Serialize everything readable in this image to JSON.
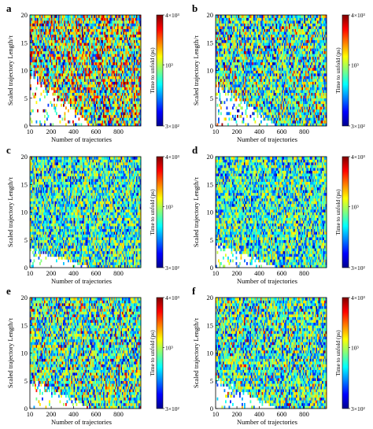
{
  "chart_data": [
    {
      "panel": "a",
      "type": "heatmap",
      "xlabel": "Number of trajectories",
      "ylabel": "Scaled trajectory Length/τ",
      "x_ticks": [
        "10",
        "200",
        "400",
        "600",
        "800"
      ],
      "y_ticks": [
        "0",
        "5",
        "10",
        "15",
        "20"
      ],
      "xlim": [
        10,
        1000
      ],
      "ylim": [
        0,
        20
      ],
      "colorbar": {
        "title": "Time to unfold (ps)",
        "scale": "log",
        "ticks": [
          "3×10²",
          "10³",
          "4×10³"
        ],
        "range": [
          300,
          4000
        ]
      },
      "seed": 11,
      "empty_below_curve": 0.55,
      "high_bias": 0.35
    },
    {
      "panel": "b",
      "type": "heatmap",
      "xlabel": "Number of trajectories",
      "ylabel": "Scaled trajectory Length/τ",
      "x_ticks": [
        "10",
        "200",
        "400",
        "600",
        "800"
      ],
      "y_ticks": [
        "0",
        "5",
        "10",
        "15",
        "20"
      ],
      "xlim": [
        10,
        1000
      ],
      "ylim": [
        0,
        20
      ],
      "colorbar": {
        "title": "Time to unfold (ps)",
        "scale": "log",
        "ticks": [
          "3×10²",
          "10³",
          "4×10³"
        ],
        "range": [
          300,
          4000
        ]
      },
      "seed": 23,
      "empty_below_curve": 0.45,
      "high_bias": 0.1
    },
    {
      "panel": "c",
      "type": "heatmap",
      "xlabel": "Number of trajectories",
      "ylabel": "Scaled trajectory Length/τ",
      "x_ticks": [
        "10",
        "200",
        "400",
        "600",
        "800"
      ],
      "y_ticks": [
        "0",
        "5",
        "10",
        "15",
        "20"
      ],
      "xlim": [
        10,
        1000
      ],
      "ylim": [
        0,
        20
      ],
      "colorbar": {
        "title": "Time to unfold (ps)",
        "scale": "log",
        "ticks": [
          "3×10²",
          "10³",
          "4×10³"
        ],
        "range": [
          300,
          4000
        ]
      },
      "seed": 37,
      "empty_below_curve": 0.2,
      "high_bias": 0.0
    },
    {
      "panel": "d",
      "type": "heatmap",
      "xlabel": "Number of trajectories",
      "ylabel": "Scaled trajectory Length/τ",
      "x_ticks": [
        "10",
        "200",
        "400",
        "600",
        "800"
      ],
      "y_ticks": [
        "0",
        "5",
        "10",
        "15",
        "20"
      ],
      "xlim": [
        10,
        1000
      ],
      "ylim": [
        0,
        20
      ],
      "colorbar": {
        "title": "Time to unfold (ps)",
        "scale": "log",
        "ticks": [
          "3×10²",
          "10³",
          "4×10³"
        ],
        "range": [
          300,
          4000
        ]
      },
      "seed": 53,
      "empty_below_curve": 0.25,
      "high_bias": 0.0
    },
    {
      "panel": "e",
      "type": "heatmap",
      "xlabel": "Number of trajectories",
      "ylabel": "Scaled trajectory Length/τ",
      "x_ticks": [
        "10",
        "200",
        "400",
        "600",
        "800"
      ],
      "y_ticks": [
        "0",
        "5",
        "10",
        "15",
        "20"
      ],
      "xlim": [
        10,
        1000
      ],
      "ylim": [
        0,
        20
      ],
      "colorbar": {
        "title": "Time to unfold (ps)",
        "scale": "log",
        "ticks": [
          "4×10³",
          "10³",
          "3×10²"
        ],
        "range": [
          300,
          4000
        ]
      },
      "seed": 71,
      "empty_below_curve": 0.3,
      "high_bias": 0.1
    },
    {
      "panel": "f",
      "type": "heatmap",
      "xlabel": "Number of trajectories",
      "ylabel": "Scaled trajectory Length/τ",
      "x_ticks": [
        "10",
        "200",
        "400",
        "600",
        "800"
      ],
      "y_ticks": [
        "0",
        "5",
        "10",
        "15",
        "20"
      ],
      "xlim": [
        10,
        1000
      ],
      "ylim": [
        0,
        20
      ],
      "colorbar": {
        "title": "Time to unfold (ps)",
        "scale": "log",
        "ticks": [
          "4×10³",
          "10³",
          "3×10²"
        ],
        "range": [
          300,
          4000
        ]
      },
      "seed": 89,
      "empty_below_curve": 0.3,
      "high_bias": 0.05
    }
  ]
}
